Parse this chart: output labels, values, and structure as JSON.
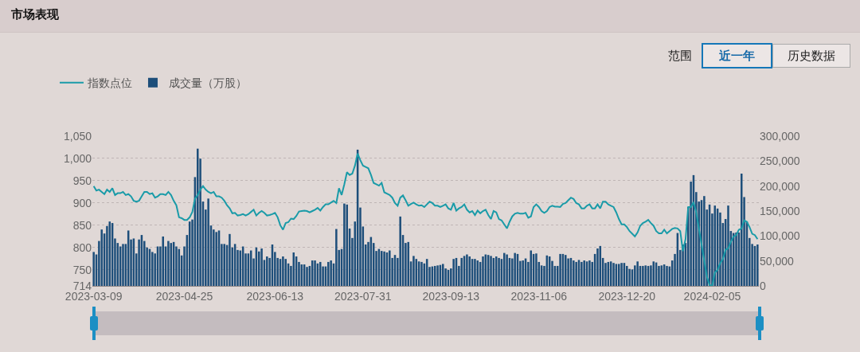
{
  "chart_data": {
    "type": "bar",
    "title": "市场表现",
    "annotations": [
      "范围",
      "近一年",
      "历史数据"
    ],
    "categories": [
      "2023-03-09",
      null,
      null,
      null,
      null,
      null,
      null,
      null,
      null,
      null,
      null,
      null,
      null,
      null,
      null,
      null,
      null,
      null,
      null,
      null,
      null,
      null,
      null,
      null,
      null,
      null,
      null,
      null,
      null,
      null,
      null,
      null,
      null,
      null,
      "2023-04-25",
      null,
      null,
      null,
      null,
      null,
      null,
      null,
      null,
      null,
      null,
      null,
      null,
      null,
      null,
      null,
      null,
      null,
      null,
      null,
      null,
      null,
      null,
      null,
      null,
      null,
      null,
      null,
      null,
      null,
      null,
      null,
      null,
      null,
      "2023-06-13",
      null,
      null,
      null,
      null,
      null,
      null,
      null,
      null,
      null,
      null,
      null,
      null,
      null,
      null,
      null,
      null,
      null,
      null,
      null,
      null,
      null,
      null,
      null,
      null,
      null,
      null,
      null,
      null,
      null,
      null,
      null,
      null,
      "2023-07-31",
      null,
      null,
      null,
      null,
      null,
      null,
      null,
      null,
      null,
      null,
      null,
      null,
      null,
      null,
      null,
      null,
      null,
      null,
      null,
      null,
      null,
      null,
      null,
      null,
      null,
      null,
      null,
      null,
      null,
      null,
      null,
      null,
      "2023-09-13",
      null,
      null,
      null,
      null,
      null,
      null,
      null,
      null,
      null,
      null,
      null,
      null,
      null,
      null,
      null,
      null,
      null,
      null,
      null,
      null,
      null,
      null,
      null,
      null,
      null,
      null,
      null,
      null,
      null,
      null,
      null,
      null,
      "2023-11-06",
      null,
      null,
      null,
      null,
      null,
      null,
      null,
      null,
      null,
      null,
      null,
      null,
      null,
      null,
      null,
      null,
      null,
      null,
      null,
      null,
      null,
      null,
      null,
      null,
      null,
      null,
      null,
      null,
      null,
      null,
      null,
      null,
      "2023-12-20",
      null,
      null,
      null,
      null,
      null,
      null,
      null,
      null,
      null,
      null,
      null,
      null,
      null,
      null,
      null,
      null,
      null,
      null,
      null,
      null,
      null,
      null,
      null,
      null,
      null,
      null,
      null,
      null,
      null,
      null,
      null,
      "2024-02-05",
      null,
      null,
      null,
      null,
      null,
      null,
      null,
      null,
      null,
      null,
      null,
      null,
      null,
      null,
      null,
      null,
      null
    ],
    "series": [
      {
        "name": "成交量（万股）",
        "axis": "y2",
        "color": "#1d4e7a",
        "values": [
          68000,
          63000,
          90000,
          113000,
          105000,
          120000,
          129000,
          126000,
          95000,
          86000,
          79000,
          84000,
          84000,
          111000,
          93000,
          95000,
          65000,
          93000,
          102000,
          90000,
          77000,
          74000,
          68000,
          65000,
          79000,
          79000,
          99000,
          79000,
          90000,
          86000,
          88000,
          79000,
          74000,
          61000,
          79000,
          102000,
          129000,
          133000,
          218000,
          275000,
          255000,
          169000,
          153000,
          175000,
          121000,
          113000,
          108000,
          111000,
          84000,
          84000,
          82000,
          104000,
          77000,
          84000,
          72000,
          71000,
          79000,
          65000,
          65000,
          71000,
          55000,
          77000,
          69000,
          75000,
          52000,
          59000,
          56000,
          83000,
          68000,
          56000,
          54000,
          59000,
          54000,
          45000,
          40000,
          67000,
          59000,
          48000,
          43000,
          43000,
          38000,
          40000,
          51000,
          51000,
          45000,
          48000,
          39000,
          39000,
          48000,
          51000,
          45000,
          114000,
          72000,
          74000,
          165000,
          163000,
          115000,
          96000,
          129000,
          273000,
          157000,
          119000,
          83000,
          88000,
          98000,
          86000,
          70000,
          74000,
          70000,
          69000,
          67000,
          71000,
          56000,
          62000,
          56000,
          139000,
          102000,
          86000,
          88000,
          49000,
          60000,
          54000,
          49000,
          48000,
          45000,
          54000,
          38000,
          39000,
          40000,
          41000,
          42000,
          44000,
          35000,
          32000,
          35000,
          54000,
          56000,
          40000,
          56000,
          60000,
          63000,
          59000,
          54000,
          54000,
          51000,
          48000,
          59000,
          63000,
          62000,
          60000,
          56000,
          59000,
          56000,
          54000,
          66000,
          63000,
          56000,
          55000,
          66000,
          64000,
          50000,
          51000,
          55000,
          48000,
          71000,
          64000,
          65000,
          48000,
          41000,
          40000,
          61000,
          59000,
          50000,
          40000,
          40000,
          64000,
          64000,
          62000,
          55000,
          56000,
          51000,
          48000,
          52000,
          48000,
          51000,
          49000,
          51000,
          48000,
          64000,
          75000,
          80000,
          56000,
          46000,
          48000,
          49000,
          46000,
          44000,
          44000,
          46000,
          46000,
          40000,
          34000,
          33000,
          41000,
          49000,
          40000,
          40000,
          41000,
          40000,
          41000,
          49000,
          47000,
          40000,
          41000,
          43000,
          40000,
          39000,
          51000,
          64000,
          106000,
          72000,
          83000,
          86000,
          158000,
          209000,
          222000,
          188000,
          169000,
          172000,
          180000,
          153000,
          163000,
          145000,
          161000,
          155000,
          147000,
          126000,
          134000,
          161000,
          110000,
          106000,
          107000,
          107000,
          225000,
          178000,
          129000,
          96000,
          84000,
          80000,
          83000
        ]
      },
      {
        "name": "指数点位",
        "type": "line",
        "color": "#1a9ba8",
        "values": [
          938,
          928,
          930,
          925,
          920,
          930,
          925,
          933,
          918,
          922,
          922,
          925,
          918,
          920,
          915,
          905,
          903,
          905,
          915,
          925,
          925,
          920,
          922,
          912,
          915,
          920,
          920,
          918,
          925,
          918,
          905,
          895,
          868,
          866,
          862,
          862,
          868,
          880,
          910,
          918,
          930,
          938,
          930,
          925,
          922,
          925,
          915,
          915,
          912,
          905,
          895,
          888,
          877,
          878,
          872,
          873,
          875,
          872,
          875,
          880,
          885,
          872,
          878,
          882,
          878,
          872,
          873,
          875,
          878,
          868,
          850,
          840,
          855,
          857,
          865,
          864,
          871,
          881,
          882,
          883,
          882,
          879,
          882,
          885,
          889,
          883,
          891,
          897,
          897,
          901,
          905,
          900,
          933,
          918,
          942,
          969,
          963,
          966,
          984,
          1011,
          996,
          984,
          981,
          978,
          963,
          945,
          942,
          939,
          945,
          924,
          921,
          918,
          912,
          900,
          894,
          912,
          917,
          906,
          894,
          898,
          901,
          897,
          894,
          895,
          891,
          897,
          903,
          900,
          894,
          894,
          891,
          894,
          897,
          888,
          885,
          900,
          883,
          888,
          891,
          897,
          885,
          879,
          882,
          873,
          883,
          877,
          882,
          885,
          873,
          864,
          882,
          879,
          864,
          861,
          852,
          843,
          858,
          870,
          876,
          878,
          876,
          876,
          878,
          867,
          870,
          891,
          897,
          891,
          882,
          878,
          882,
          891,
          894,
          892,
          892,
          891,
          898,
          900,
          906,
          912,
          909,
          900,
          897,
          888,
          888,
          894,
          897,
          888,
          888,
          897,
          888,
          903,
          903,
          897,
          894,
          891,
          879,
          864,
          852,
          852,
          846,
          837,
          831,
          825,
          834,
          849,
          855,
          858,
          862,
          855,
          849,
          837,
          832,
          832,
          840,
          832,
          837,
          842,
          844,
          843,
          837,
          792,
          819,
          891,
          891,
          902,
          879,
          843,
          807,
          771,
          735,
          716,
          714,
          744,
          750,
          765,
          774,
          795,
          798,
          813,
          825,
          828,
          840,
          843,
          861,
          858,
          846,
          831,
          828,
          819
        ]
      }
    ],
    "ylim": [
      714,
      1050
    ],
    "yticks": [
      714,
      750,
      800,
      850,
      900,
      950,
      {
        "value": 1000,
        "label": "1,000"
      },
      {
        "value": 1050,
        "label": "1,050"
      }
    ],
    "y2lim": [
      0,
      300000
    ],
    "y2ticks": [
      0,
      {
        "value": 50000,
        "label": "50,000"
      },
      {
        "value": 100000,
        "label": "100,000"
      },
      {
        "value": 150000,
        "label": "150,000"
      },
      {
        "value": 200000,
        "label": "200,000"
      },
      {
        "value": 250000,
        "label": "250,000"
      },
      {
        "value": 300000,
        "label": "300,000"
      }
    ],
    "grid": "y",
    "legend": "top left"
  }
}
